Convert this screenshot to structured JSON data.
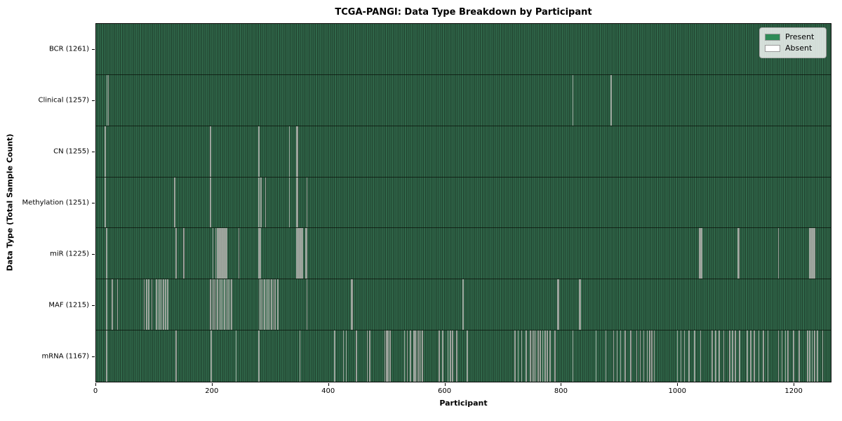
{
  "title": "TCGA-PANGI: Data Type Breakdown by Participant",
  "axes": {
    "xlabel": "Participant",
    "ylabel": "Data Type (Total Sample Count)"
  },
  "legend": {
    "items": [
      {
        "label": "Present",
        "color": "#2e8b57"
      },
      {
        "label": "Absent",
        "color": "#ffffff"
      }
    ]
  },
  "chart_data": {
    "type": "heatmap",
    "title": "TCGA-PANGI: Data Type Breakdown by Participant",
    "xlabel": "Participant",
    "ylabel": "Data Type (Total Sample Count)",
    "x_ticks": [
      0,
      200,
      400,
      600,
      800,
      1000,
      1200
    ],
    "x_range": [
      0,
      1265
    ],
    "n_participants": 1261,
    "legend_position": "upper right",
    "grid": false,
    "colors": {
      "present": "#2e8b57",
      "present_texture_dark": "#20402d",
      "absent_stripe": "#aab0aa",
      "row_separator": "#0a120b"
    },
    "series": [
      {
        "name": "BCR",
        "total": 1261,
        "label": "BCR (1261)",
        "absent_participants": []
      },
      {
        "name": "Clinical",
        "total": 1257,
        "label": "Clinical (1257)",
        "absent_participants": [
          18,
          20,
          820,
          886
        ]
      },
      {
        "name": "CN",
        "total": 1255,
        "label": "CN (1255)",
        "absent_participants": [
          15,
          196,
          279,
          332,
          344,
          346
        ]
      },
      {
        "name": "Methylation",
        "total": 1251,
        "label": "Methylation (1251)",
        "absent_participants": [
          15,
          134,
          196,
          279,
          283,
          291,
          332,
          344,
          346,
          362
        ]
      },
      {
        "name": "miR",
        "total": 1225,
        "label": "miR (1225)",
        "absent_participants": [
          17,
          137,
          150,
          200,
          205,
          208,
          210,
          212,
          214,
          216,
          218,
          220,
          222,
          224,
          245,
          279,
          282,
          344,
          346,
          348,
          350,
          352,
          354,
          360,
          362,
          1038,
          1040,
          1042,
          1104,
          1106,
          1174,
          1228,
          1230,
          1232,
          1234,
          1236
        ]
      },
      {
        "name": "MAF",
        "total": 1215,
        "label": "MAF (1215)",
        "absent_participants": [
          17,
          27,
          36,
          82,
          86,
          90,
          95,
          103,
          106,
          109,
          112,
          115,
          119,
          122,
          196,
          199,
          202,
          205,
          208,
          211,
          214,
          217,
          220,
          223,
          226,
          229,
          232,
          280,
          283,
          286,
          289,
          292,
          295,
          298,
          301,
          304,
          307,
          312,
          362,
          438,
          440,
          631,
          794,
          796,
          831,
          833
        ]
      },
      {
        "name": "mRNA",
        "total": 1167,
        "label": "mRNA (1167)",
        "absent_participants": [
          17,
          137,
          197,
          240,
          279,
          350,
          410,
          425,
          430,
          447,
          466,
          470,
          496,
          499,
          502,
          505,
          530,
          535,
          540,
          546,
          549,
          552,
          555,
          558,
          561,
          590,
          596,
          605,
          609,
          613,
          620,
          638,
          720,
          726,
          732,
          740,
          747,
          750,
          753,
          756,
          760,
          764,
          768,
          772,
          776,
          781,
          789,
          820,
          860,
          877,
          890,
          896,
          902,
          910,
          920,
          930,
          936,
          942,
          948,
          952,
          956,
          960,
          1000,
          1006,
          1012,
          1020,
          1030,
          1040,
          1060,
          1066,
          1072,
          1080,
          1090,
          1095,
          1100,
          1107,
          1120,
          1126,
          1132,
          1140,
          1148,
          1156,
          1174,
          1180,
          1186,
          1190,
          1200,
          1210,
          1224,
          1228,
          1232,
          1236,
          1241,
          1250
        ]
      }
    ]
  }
}
